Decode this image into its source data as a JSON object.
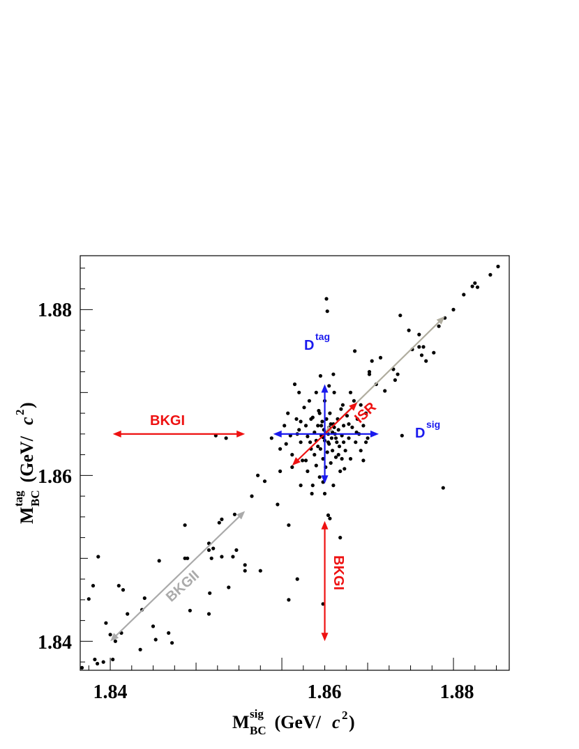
{
  "chart_data": {
    "type": "scatter",
    "title": "",
    "xlabel": {
      "main": "M",
      "sub": "BC",
      "sup": "sig",
      "unit_open": " (GeV/",
      "unit_c": "c",
      "unit_exp": "2",
      "unit_close": ")"
    },
    "ylabel": {
      "main": "M",
      "sub": "BC",
      "sup": "tag",
      "unit_open": " (GeV/",
      "unit_c": "c",
      "unit_exp": "2",
      "unit_close": ")"
    },
    "xlim": [
      1.8365,
      1.8865
    ],
    "ylim": [
      1.8365,
      1.8865
    ],
    "x_major_ticks": [
      1.84,
      1.86,
      1.88
    ],
    "y_major_ticks": [
      1.84,
      1.86,
      1.88
    ],
    "x_tick_labels": [
      "1.84",
      "1.86",
      "1.88"
    ],
    "y_tick_labels": [
      "1.84",
      "1.86",
      "1.88"
    ],
    "grid": false,
    "marker_color": "#000000",
    "series": [
      {
        "points": [
          [
            1.8367,
            1.8368
          ],
          [
            1.8375,
            1.8451
          ],
          [
            1.838,
            1.8467
          ],
          [
            1.8382,
            1.8378
          ],
          [
            1.8385,
            1.8373
          ],
          [
            1.8386,
            1.8502
          ],
          [
            1.8392,
            1.8375
          ],
          [
            1.8395,
            1.8422
          ],
          [
            1.84,
            1.8408
          ],
          [
            1.8403,
            1.8378
          ],
          [
            1.8406,
            1.84
          ],
          [
            1.841,
            1.8467
          ],
          [
            1.8413,
            1.841
          ],
          [
            1.8415,
            1.8462
          ],
          [
            1.842,
            1.8433
          ],
          [
            1.8435,
            1.839
          ],
          [
            1.8437,
            1.8438
          ],
          [
            1.844,
            1.8452
          ],
          [
            1.845,
            1.8418
          ],
          [
            1.8453,
            1.8402
          ],
          [
            1.8457,
            1.8497
          ],
          [
            1.8468,
            1.841
          ],
          [
            1.8472,
            1.8398
          ],
          [
            1.8487,
            1.854
          ],
          [
            1.8487,
            1.85
          ],
          [
            1.849,
            1.85
          ],
          [
            1.8493,
            1.8437
          ],
          [
            1.8515,
            1.8433
          ],
          [
            1.8515,
            1.8518
          ],
          [
            1.8515,
            1.851
          ],
          [
            1.8516,
            1.8458
          ],
          [
            1.8518,
            1.85
          ],
          [
            1.852,
            1.8512
          ],
          [
            1.8523,
            1.8648
          ],
          [
            1.8527,
            1.8543
          ],
          [
            1.853,
            1.8547
          ],
          [
            1.853,
            1.8502
          ],
          [
            1.8535,
            1.8645
          ],
          [
            1.8538,
            1.8465
          ],
          [
            1.8543,
            1.8502
          ],
          [
            1.8545,
            1.8553
          ],
          [
            1.8547,
            1.851
          ],
          [
            1.8557,
            1.8492
          ],
          [
            1.8557,
            1.8485
          ],
          [
            1.8565,
            1.8575
          ],
          [
            1.8572,
            1.86
          ],
          [
            1.8575,
            1.8485
          ],
          [
            1.858,
            1.8593
          ],
          [
            1.8588,
            1.8645
          ],
          [
            1.8595,
            1.8565
          ],
          [
            1.8598,
            1.8605
          ],
          [
            1.8608,
            1.845
          ],
          [
            1.8608,
            1.854
          ],
          [
            1.8612,
            1.861
          ],
          [
            1.8618,
            1.8475
          ],
          [
            1.8622,
            1.8588
          ],
          [
            1.8635,
            1.8578
          ],
          [
            1.8648,
            1.8445
          ],
          [
            1.865,
            1.8578
          ],
          [
            1.8652,
            1.8813
          ],
          [
            1.8653,
            1.8798
          ],
          [
            1.8654,
            1.8552
          ],
          [
            1.8656,
            1.8548
          ],
          [
            1.8668,
            1.8525
          ],
          [
            1.867,
            1.862
          ],
          [
            1.8673,
            1.8608
          ],
          [
            1.868,
            1.87
          ],
          [
            1.8685,
            1.875
          ],
          [
            1.8692,
            1.8685
          ],
          [
            1.8695,
            1.8618
          ],
          [
            1.8698,
            1.864
          ],
          [
            1.8702,
            1.8722
          ],
          [
            1.8705,
            1.8738
          ],
          [
            1.871,
            1.871
          ],
          [
            1.8715,
            1.8742
          ],
          [
            1.872,
            1.8702
          ],
          [
            1.873,
            1.8728
          ],
          [
            1.8732,
            1.8715
          ],
          [
            1.8735,
            1.8722
          ],
          [
            1.874,
            1.8648
          ],
          [
            1.8748,
            1.8775
          ],
          [
            1.8752,
            1.8752
          ],
          [
            1.876,
            1.877
          ],
          [
            1.8763,
            1.8745
          ],
          [
            1.8765,
            1.8755
          ],
          [
            1.8768,
            1.8738
          ],
          [
            1.8777,
            1.8748
          ],
          [
            1.8783,
            1.878
          ],
          [
            1.8788,
            1.8585
          ],
          [
            1.879,
            1.879
          ],
          [
            1.88,
            1.88
          ],
          [
            1.8812,
            1.8818
          ],
          [
            1.8822,
            1.8828
          ],
          [
            1.8825,
            1.8832
          ],
          [
            1.8828,
            1.8827
          ],
          [
            1.8843,
            1.8842
          ],
          [
            1.8852,
            1.8852
          ],
          [
            1.8738,
            1.8793
          ],
          [
            1.876,
            1.8755
          ],
          [
            1.8702,
            1.8725
          ],
          [
            1.8598,
            1.8632
          ],
          [
            1.8603,
            1.866
          ],
          [
            1.8605,
            1.8638
          ],
          [
            1.8607,
            1.8675
          ],
          [
            1.861,
            1.8648
          ],
          [
            1.8612,
            1.8625
          ],
          [
            1.8615,
            1.871
          ],
          [
            1.8617,
            1.8668
          ],
          [
            1.862,
            1.87
          ],
          [
            1.862,
            1.8655
          ],
          [
            1.8622,
            1.864
          ],
          [
            1.8624,
            1.8618
          ],
          [
            1.8626,
            1.8682
          ],
          [
            1.8628,
            1.866
          ],
          [
            1.863,
            1.8647
          ],
          [
            1.863,
            1.8605
          ],
          [
            1.8632,
            1.869
          ],
          [
            1.8634,
            1.8632
          ],
          [
            1.8636,
            1.867
          ],
          [
            1.8638,
            1.8652
          ],
          [
            1.8638,
            1.8625
          ],
          [
            1.864,
            1.8642
          ],
          [
            1.864,
            1.8612
          ],
          [
            1.8642,
            1.866
          ],
          [
            1.8643,
            1.8678
          ],
          [
            1.8644,
            1.8598
          ],
          [
            1.8645,
            1.8632
          ],
          [
            1.8646,
            1.8648
          ],
          [
            1.8647,
            1.8665
          ],
          [
            1.8648,
            1.862
          ],
          [
            1.8649,
            1.8655
          ],
          [
            1.865,
            1.869
          ],
          [
            1.865,
            1.8642
          ],
          [
            1.8651,
            1.861
          ],
          [
            1.8652,
            1.8668
          ],
          [
            1.8653,
            1.8628
          ],
          [
            1.8654,
            1.865
          ],
          [
            1.8655,
            1.8638
          ],
          [
            1.8655,
            1.8658
          ],
          [
            1.8656,
            1.8675
          ],
          [
            1.8657,
            1.8615
          ],
          [
            1.8658,
            1.8645
          ],
          [
            1.8659,
            1.863
          ],
          [
            1.866,
            1.8662
          ],
          [
            1.8661,
            1.87
          ],
          [
            1.8662,
            1.865
          ],
          [
            1.8663,
            1.8622
          ],
          [
            1.8664,
            1.864
          ],
          [
            1.8665,
            1.8668
          ],
          [
            1.8666,
            1.8655
          ],
          [
            1.8667,
            1.8635
          ],
          [
            1.8668,
            1.8605
          ],
          [
            1.8669,
            1.868
          ],
          [
            1.867,
            1.8648
          ],
          [
            1.8672,
            1.866
          ],
          [
            1.8674,
            1.863
          ],
          [
            1.8676,
            1.8672
          ],
          [
            1.8678,
            1.8645
          ],
          [
            1.868,
            1.862
          ],
          [
            1.8682,
            1.8658
          ],
          [
            1.8684,
            1.869
          ],
          [
            1.8686,
            1.864
          ],
          [
            1.8688,
            1.8668
          ],
          [
            1.869,
            1.865
          ],
          [
            1.8692,
            1.863
          ],
          [
            1.8695,
            1.866
          ],
          [
            1.8698,
            1.8675
          ],
          [
            1.87,
            1.8645
          ],
          [
            1.864,
            1.87
          ],
          [
            1.8645,
            1.872
          ],
          [
            1.8655,
            1.8708
          ],
          [
            1.866,
            1.8722
          ],
          [
            1.8636,
            1.8588
          ],
          [
            1.8648,
            1.8592
          ],
          [
            1.866,
            1.8588
          ],
          [
            1.8628,
            1.8618
          ],
          [
            1.8642,
            1.8635
          ],
          [
            1.8651,
            1.8652
          ],
          [
            1.8657,
            1.8662
          ],
          [
            1.8663,
            1.8645
          ],
          [
            1.8646,
            1.866
          ],
          [
            1.8654,
            1.864
          ],
          [
            1.8659,
            1.8652
          ],
          [
            1.8648,
            1.8646
          ],
          [
            1.8661,
            1.8658
          ],
          [
            1.8634,
            1.8668
          ],
          [
            1.8672,
            1.864
          ],
          [
            1.8618,
            1.865
          ],
          [
            1.8687,
            1.8652
          ],
          [
            1.8622,
            1.8665
          ],
          [
            1.8678,
            1.8662
          ],
          [
            1.8644,
            1.8675
          ],
          [
            1.8666,
            1.8625
          ],
          [
            1.8633,
            1.864
          ],
          [
            1.8671,
            1.8685
          ]
        ]
      }
    ],
    "annotations": [
      {
        "text": "BKGI",
        "color": "#ee1111",
        "orientation": "horizontal",
        "from": [
          1.8403,
          1.865
        ],
        "to": [
          1.8557,
          1.865
        ]
      },
      {
        "text": "BKGI",
        "color": "#ee1111",
        "orientation": "vertical",
        "from": [
          1.865,
          1.8545
        ],
        "to": [
          1.865,
          1.84
        ]
      },
      {
        "text": "BKGII",
        "color": "#aaaaaa",
        "orientation": "diagonal",
        "from": [
          1.84,
          1.84
        ],
        "to": [
          1.8557,
          1.8557
        ]
      },
      {
        "text": "",
        "color": "#b0ad9f",
        "orientation": "diagonal",
        "from": [
          1.865,
          1.865
        ],
        "to": [
          1.879,
          1.8792
        ]
      },
      {
        "text": "ISR",
        "color": "#ee1111",
        "orientation": "diagonal",
        "from": [
          1.8612,
          1.8612
        ],
        "to": [
          1.8688,
          1.8688
        ]
      },
      {
        "text": "",
        "color": "#1a1aee",
        "orientation": "horizontal",
        "from": [
          1.859,
          1.865
        ],
        "to": [
          1.8713,
          1.865
        ]
      },
      {
        "text": "",
        "color": "#1a1aee",
        "orientation": "vertical",
        "from": [
          1.865,
          1.871
        ],
        "to": [
          1.865,
          1.859
        ]
      }
    ],
    "labels": {
      "dtag": {
        "main": "D",
        "sup": "tag",
        "color": "#1a1aee"
      },
      "dsig": {
        "main": "D",
        "sup": "sig",
        "color": "#1a1aee"
      }
    }
  }
}
